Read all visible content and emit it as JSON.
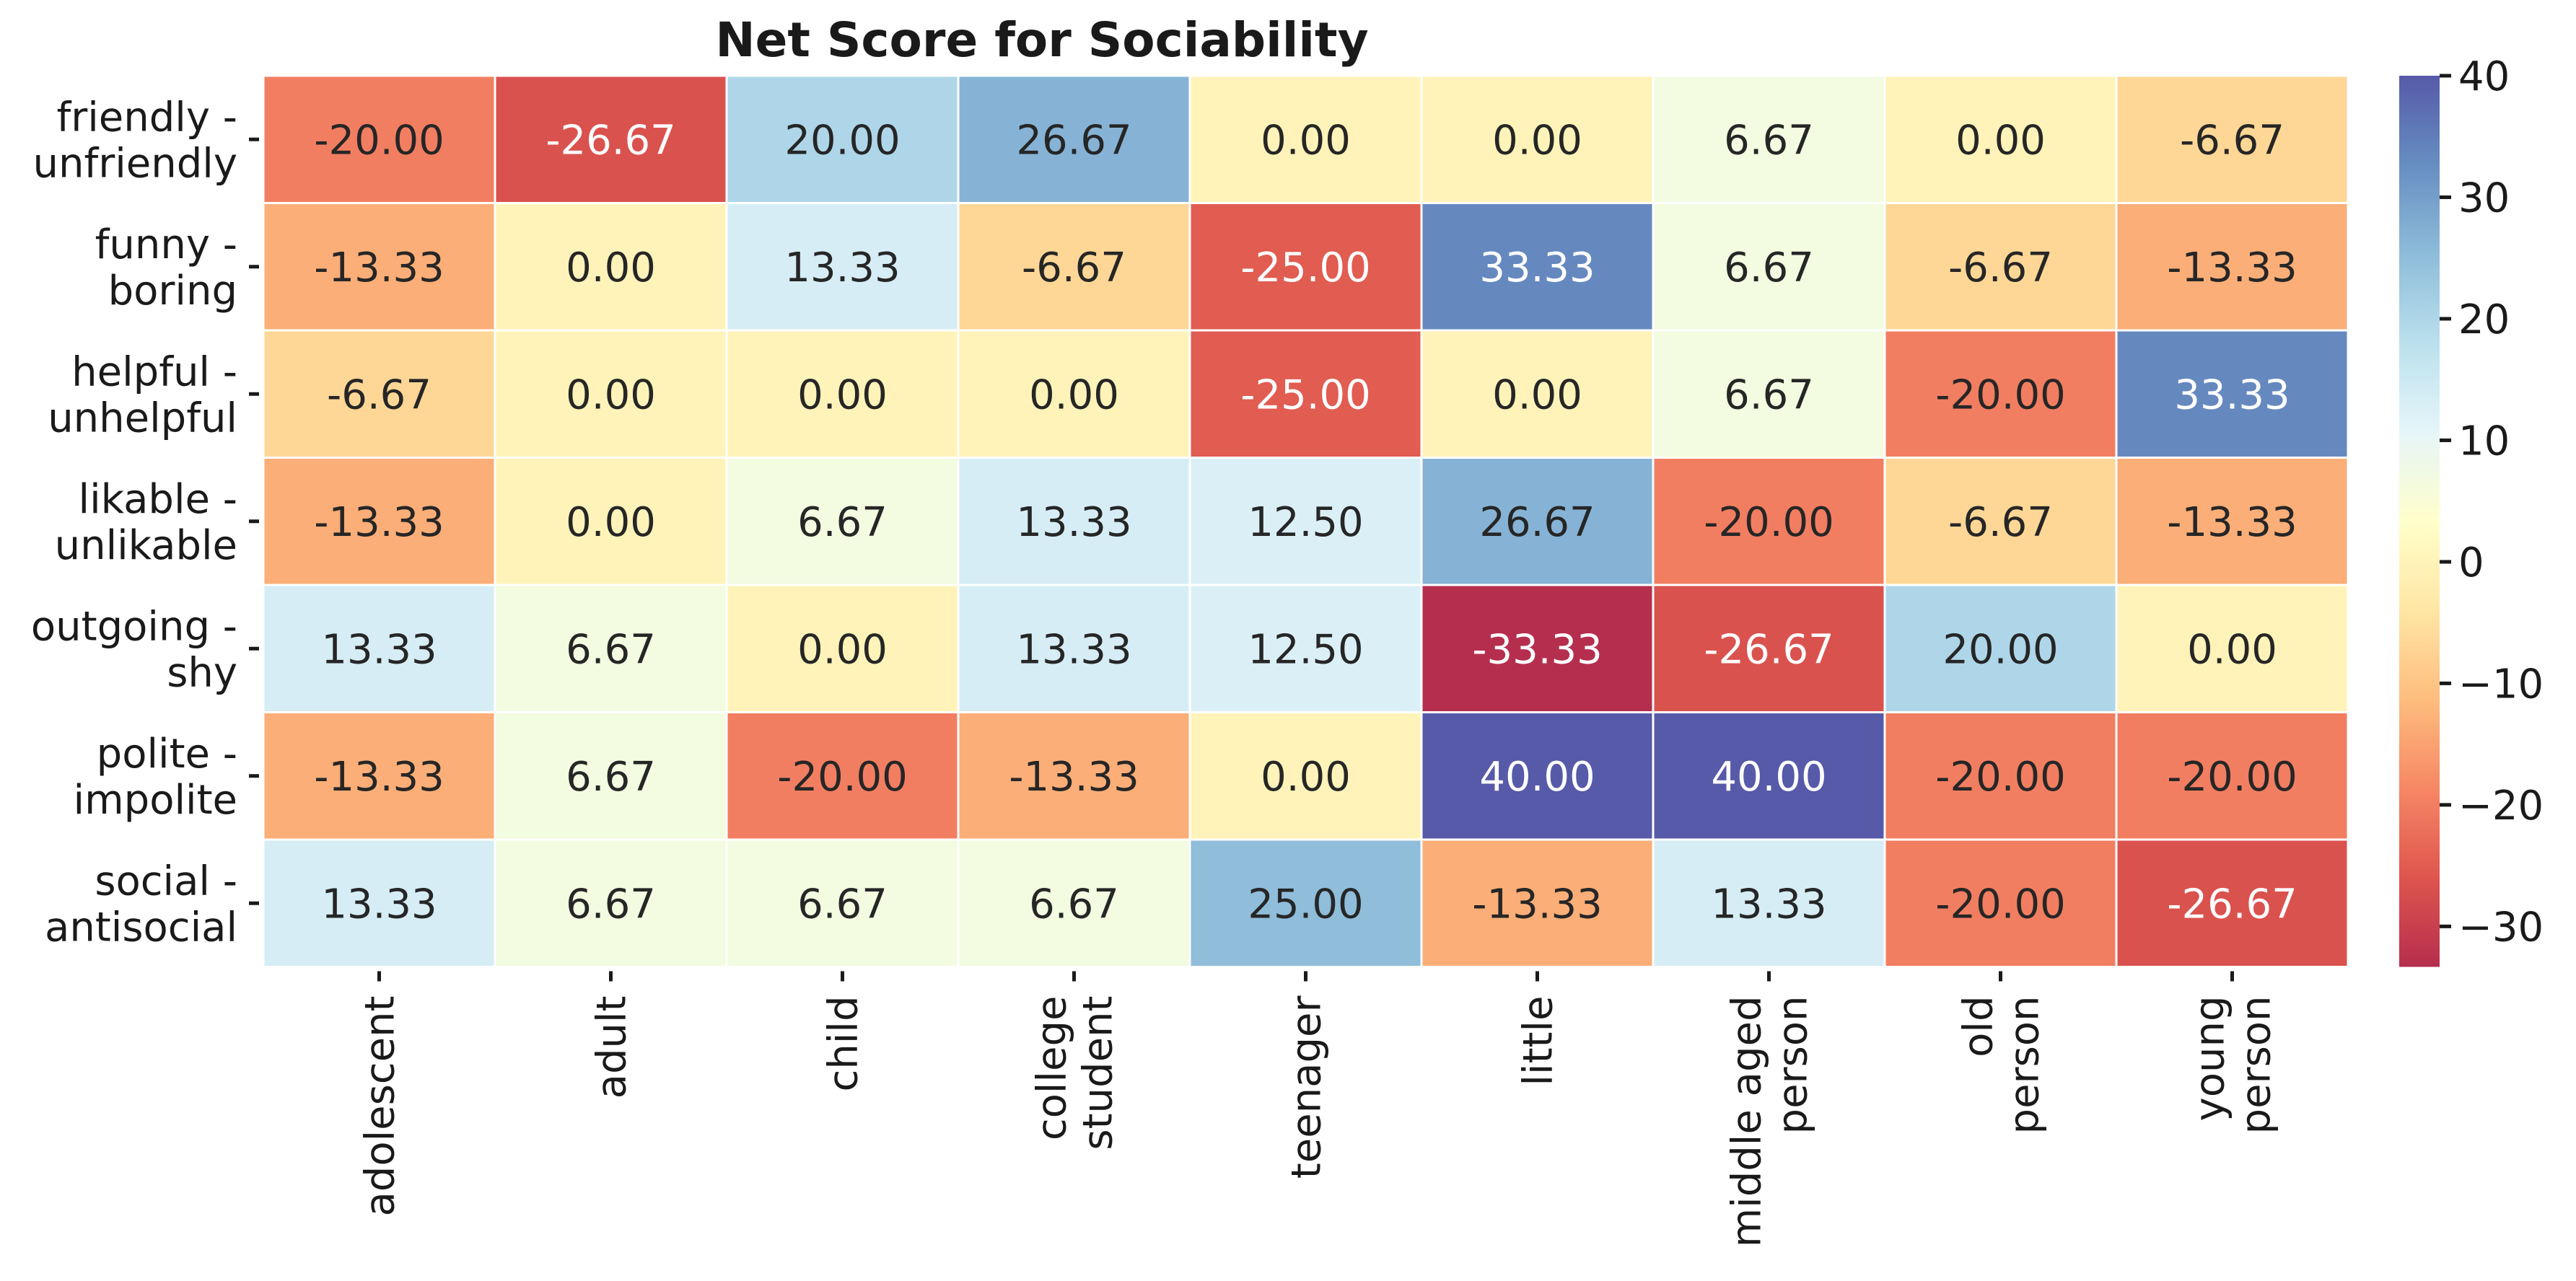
{
  "chart_data": {
    "type": "heatmap",
    "title": "Net Score for Sociability",
    "rows": [
      [
        "friendly -",
        "unfriendly"
      ],
      [
        "funny -",
        "boring"
      ],
      [
        "helpful -",
        "unhelpful"
      ],
      [
        "likable -",
        "unlikable"
      ],
      [
        "outgoing -",
        "shy"
      ],
      [
        "polite -",
        "impolite"
      ],
      [
        "social -",
        "antisocial"
      ]
    ],
    "columns": [
      [
        "adolescent"
      ],
      [
        "adult"
      ],
      [
        "child"
      ],
      [
        "college",
        "student"
      ],
      [
        "teenager"
      ],
      [
        "little"
      ],
      [
        "middle aged",
        "person"
      ],
      [
        "old",
        "person"
      ],
      [
        "young",
        "person"
      ]
    ],
    "values": [
      [
        -20.0,
        -26.67,
        20.0,
        26.67,
        0.0,
        0.0,
        6.67,
        0.0,
        -6.67
      ],
      [
        -13.33,
        0.0,
        13.33,
        -6.67,
        -25.0,
        33.33,
        6.67,
        -6.67,
        -13.33
      ],
      [
        -6.67,
        0.0,
        0.0,
        0.0,
        -25.0,
        0.0,
        6.67,
        -20.0,
        33.33
      ],
      [
        -13.33,
        0.0,
        6.67,
        13.33,
        12.5,
        26.67,
        -20.0,
        -6.67,
        -13.33
      ],
      [
        13.33,
        6.67,
        0.0,
        13.33,
        12.5,
        -33.33,
        -26.67,
        20.0,
        0.0
      ],
      [
        -13.33,
        6.67,
        -20.0,
        -13.33,
        0.0,
        40.0,
        40.0,
        -20.0,
        -20.0
      ],
      [
        13.33,
        6.67,
        6.67,
        6.67,
        25.0,
        -13.33,
        13.33,
        -20.0,
        -26.67
      ]
    ],
    "value_format": "2 decimals",
    "colormap": "RdYlBu",
    "vmin": -33.33,
    "vmax": 40.0,
    "colorbar": {
      "ticks": [
        "40",
        "30",
        "20",
        "10",
        "0",
        "−10",
        "−20",
        "−30"
      ],
      "tick_values": [
        40,
        30,
        20,
        10,
        0,
        -10,
        -20,
        -30
      ]
    },
    "legend": "colorbar right",
    "grid": "white cell borders"
  }
}
